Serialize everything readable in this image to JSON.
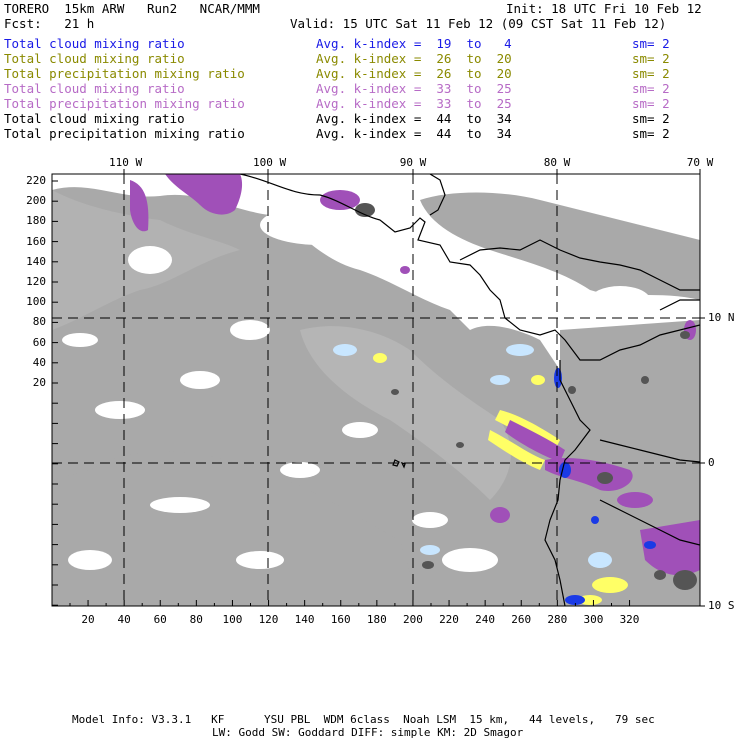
{
  "header": {
    "model": "TORERO  15km ARW   Run2   NCAR/MMM",
    "init": "Init: 18 UTC Fri 10 Feb 12",
    "fcst": "Fcst:   21 h",
    "valid": "Valid: 15 UTC Sat 11 Feb 12 (09 CST Sat 11 Feb 12)"
  },
  "legend": [
    {
      "field": "Total cloud mixing ratio",
      "kindex": "Avg. k-index =  19  to   4",
      "sm": "sm= 2",
      "color": "#1a1ae6"
    },
    {
      "field": "Total cloud mixing ratio",
      "kindex": "Avg. k-index =  26  to  20",
      "sm": "sm= 2",
      "color": "#8a8a00"
    },
    {
      "field": "Total precipitation mixing ratio",
      "kindex": "Avg. k-index =  26  to  20",
      "sm": "sm= 2",
      "color": "#8a8a00"
    },
    {
      "field": "Total cloud mixing ratio",
      "kindex": "Avg. k-index =  33  to  25",
      "sm": "sm= 2",
      "color": "#b76bc6"
    },
    {
      "field": "Total precipitation mixing ratio",
      "kindex": "Avg. k-index =  33  to  25",
      "sm": "sm= 2",
      "color": "#b76bc6"
    },
    {
      "field": "Total cloud mixing ratio",
      "kindex": "Avg. k-index =  44  to  34",
      "sm": "sm= 2",
      "color": "#000000"
    },
    {
      "field": "Total precipitation mixing ratio",
      "kindex": "Avg. k-index =  44  to  34",
      "sm": "sm= 2",
      "color": "#000000"
    }
  ],
  "axes": {
    "top_lon": [
      "110 W",
      "100 W",
      "90 W",
      "80 W",
      "70 W"
    ],
    "right_lat": [
      "10 N",
      "0",
      "10 S"
    ],
    "left_y": [
      "220",
      "200",
      "180",
      "160",
      "140",
      "120",
      "100",
      "80",
      "60",
      "40",
      "20"
    ],
    "bottom_x": [
      "20",
      "40",
      "60",
      "80",
      "100",
      "120",
      "140",
      "160",
      "180",
      "200",
      "220",
      "240",
      "260",
      "280",
      "300",
      "320"
    ]
  },
  "footer": {
    "line1": "Model Info: V3.3.1   KF      YSU PBL  WDM 6class  Noah LSM  15 km,   44 levels,   79 sec",
    "line2": "LW: Godd SW: Goddard DIFF: simple KM: 2D Smagor"
  },
  "colors": {
    "cloud_gray": "#a9a9a9",
    "dark_gray": "#555555",
    "yellow": "#ffff66",
    "purple": "#a050b8",
    "light_blue": "#c8e6ff",
    "blue": "#1a3ae6"
  }
}
